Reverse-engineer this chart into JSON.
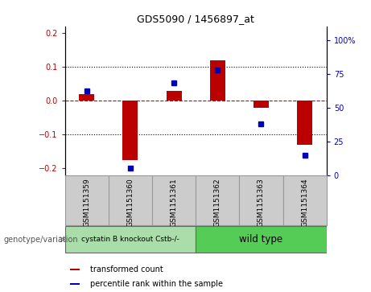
{
  "title": "GDS5090 / 1456897_at",
  "samples": [
    "GSM1151359",
    "GSM1151360",
    "GSM1151361",
    "GSM1151362",
    "GSM1151363",
    "GSM1151364"
  ],
  "bar_values": [
    0.02,
    -0.175,
    0.03,
    0.12,
    -0.02,
    -0.13
  ],
  "dot_values_pct": [
    62,
    5,
    68,
    78,
    38,
    15
  ],
  "bar_color": "#bb0000",
  "dot_color": "#0000bb",
  "ylim_left": [
    -0.22,
    0.22
  ],
  "ylim_right": [
    0,
    110
  ],
  "yticks_left": [
    -0.2,
    -0.1,
    0.0,
    0.1,
    0.2
  ],
  "yticks_right": [
    0,
    25,
    50,
    75,
    100
  ],
  "ytick_labels_right": [
    "0",
    "25",
    "50",
    "75",
    "100%"
  ],
  "group1_label": "cystatin B knockout Cstb-/-",
  "group2_label": "wild type",
  "group1_color": "#aaddaa",
  "group2_color": "#55cc55",
  "group1_indices": [
    0,
    1,
    2
  ],
  "group2_indices": [
    3,
    4,
    5
  ],
  "legend_bar_label": "transformed count",
  "legend_dot_label": "percentile rank within the sample",
  "genotype_label": "genotype/variation",
  "zero_line_color": "#cc0000",
  "dotted_line_color": "#000000",
  "sample_box_color": "#cccccc",
  "bar_width": 0.35
}
